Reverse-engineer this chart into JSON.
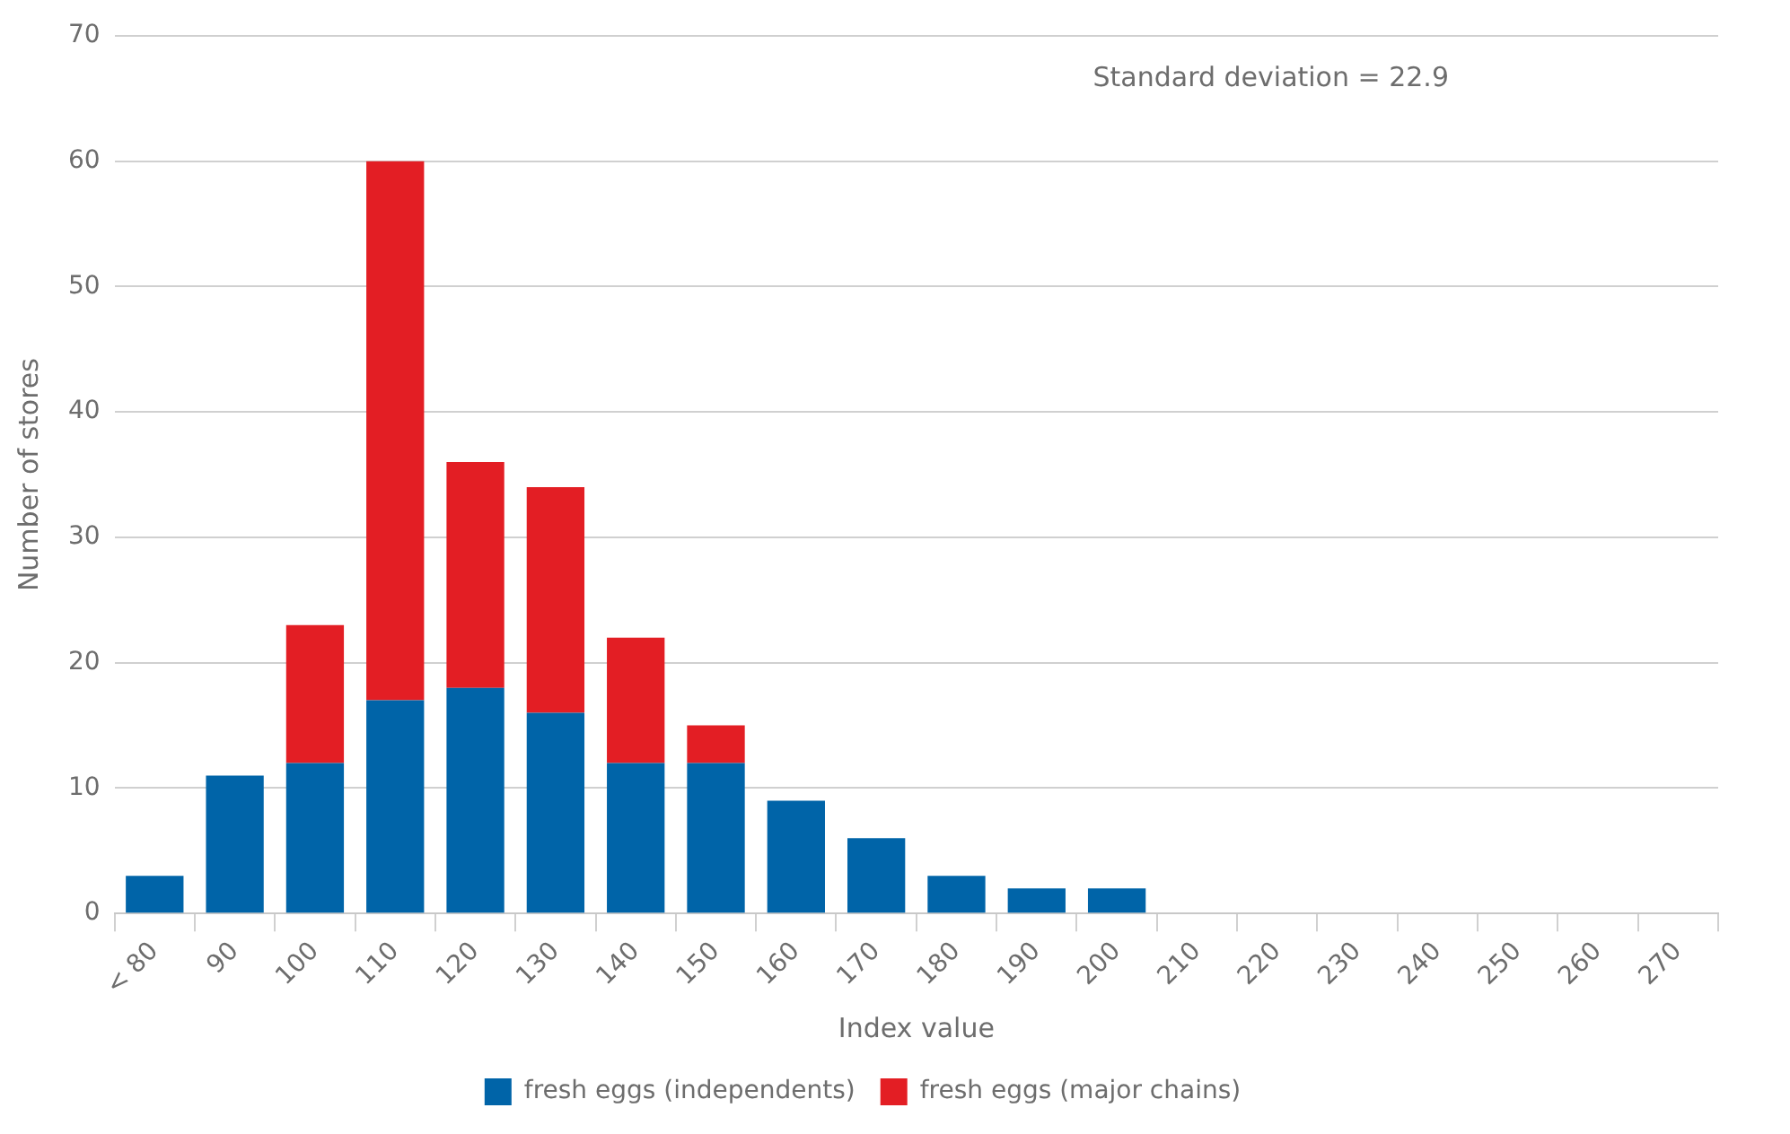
{
  "chart_data": {
    "type": "bar",
    "stacked": true,
    "xlabel": "Index value",
    "ylabel": "Number of stores",
    "categories": [
      "< 80",
      "90",
      "100",
      "110",
      "120",
      "130",
      "140",
      "150",
      "160",
      "170",
      "180",
      "190",
      "200",
      "210",
      "220",
      "230",
      "240",
      "250",
      "260",
      "270"
    ],
    "series": [
      {
        "name": "fresh eggs (independents)",
        "color": "#0064a8",
        "values": [
          3,
          11,
          12,
          17,
          18,
          16,
          12,
          12,
          9,
          6,
          3,
          2,
          2,
          0,
          0,
          0,
          0,
          0,
          0,
          0
        ]
      },
      {
        "name": "fresh eggs (major chains)",
        "color": "#e31e24",
        "values": [
          0,
          0,
          11,
          43,
          18,
          18,
          10,
          3,
          0,
          0,
          0,
          0,
          0,
          0,
          0,
          0,
          0,
          0,
          0,
          0
        ]
      }
    ],
    "ylim": [
      0,
      70
    ],
    "yticks": [
      0,
      10,
      20,
      30,
      40,
      50,
      60,
      70
    ],
    "grid": "y",
    "legend": "bottom",
    "annotations": [
      "Standard deviation = 22.9"
    ]
  }
}
